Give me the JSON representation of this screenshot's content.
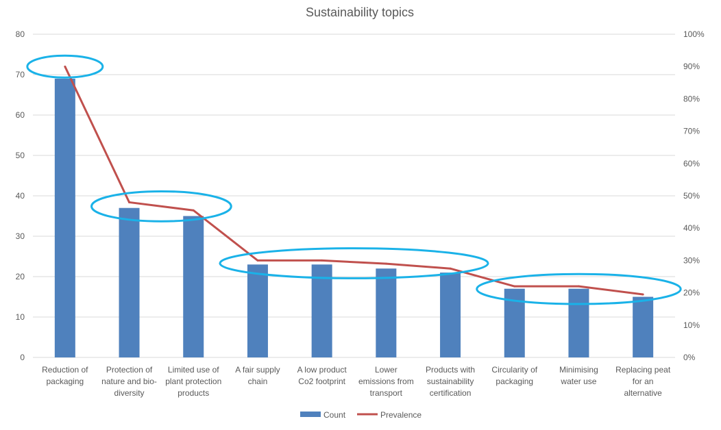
{
  "chart_data": {
    "type": "bar+line",
    "title": "Sustainability topics",
    "categories": [
      [
        "Reduction of",
        "packaging"
      ],
      [
        "Protection of",
        "nature and bio-",
        "diversity"
      ],
      [
        "Limited use of",
        "plant protection",
        "products"
      ],
      [
        "A fair supply",
        "chain"
      ],
      [
        "A low product",
        "Co2 footprint"
      ],
      [
        "Lower",
        "emissions from",
        "transport"
      ],
      [
        "Products with",
        "sustainability",
        "certification"
      ],
      [
        "Circularity of",
        "packaging"
      ],
      [
        "Minimising",
        "water use"
      ],
      [
        "Replacing peat",
        "for an",
        "alternative"
      ]
    ],
    "series": [
      {
        "name": "Count",
        "type": "bar",
        "axis": "left",
        "color": "#4f81bd",
        "values": [
          69,
          37,
          35,
          23,
          23,
          22,
          21,
          17,
          17,
          15
        ]
      },
      {
        "name": "Prevalence",
        "type": "line",
        "axis": "right",
        "color": "#c0504d",
        "values": [
          0.9,
          0.48,
          0.455,
          0.3,
          0.3,
          0.29,
          0.275,
          0.22,
          0.22,
          0.195
        ]
      }
    ],
    "y_left": {
      "min": 0,
      "max": 80,
      "ticks": [
        "0",
        "10",
        "20",
        "30",
        "40",
        "50",
        "60",
        "70",
        "80"
      ]
    },
    "y_right": {
      "min": 0,
      "max": 1,
      "ticks": [
        "0%",
        "10%",
        "20%",
        "30%",
        "40%",
        "50%",
        "60%",
        "70%",
        "80%",
        "90%",
        "100%"
      ]
    },
    "legend": {
      "position": "bottom",
      "items": [
        "Count",
        "Prevalence"
      ]
    },
    "highlight_groups": [
      [
        0
      ],
      [
        1,
        2
      ],
      [
        3,
        4,
        5,
        6
      ],
      [
        7,
        8,
        9
      ]
    ],
    "highlight_color": "#1ab2e8",
    "grid": true
  }
}
